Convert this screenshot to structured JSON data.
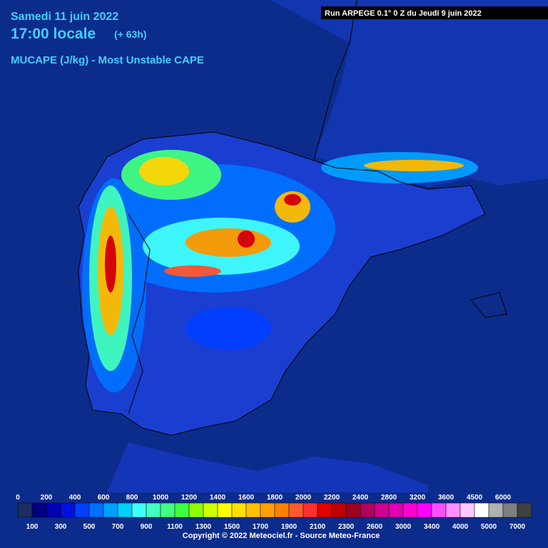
{
  "header": {
    "date": "Samedi 11 juin 2022",
    "time": "17:00 locale",
    "lead": "(+ 63h)",
    "field": "MUCAPE (J/kg) - Most Unstable CAPE",
    "run": "Run ARPEGE 0.1° 0 Z du Jeudi 9 juin 2022"
  },
  "legend": {
    "levels": [
      0,
      100,
      200,
      300,
      400,
      500,
      600,
      700,
      800,
      900,
      1000,
      1100,
      1200,
      1300,
      1400,
      1500,
      1600,
      1700,
      1800,
      1900,
      2000,
      2100,
      2200,
      2300,
      2400,
      2600,
      2800,
      3000,
      3200,
      3400,
      3600,
      4000,
      4500,
      5000,
      6000,
      7000
    ],
    "colors": [
      "#1c2c5c",
      "#000080",
      "#0000b4",
      "#0010e0",
      "#0040ff",
      "#0070ff",
      "#00a0ff",
      "#00d0ff",
      "#40ffff",
      "#40ffc0",
      "#40ff80",
      "#40ff40",
      "#90ff00",
      "#d0ff00",
      "#ffff00",
      "#ffe000",
      "#ffc000",
      "#ffa000",
      "#ff8000",
      "#ff5a30",
      "#ff3030",
      "#e00000",
      "#c00000",
      "#a00020",
      "#b00060",
      "#d00090",
      "#e000b0",
      "#ff00d0",
      "#ff00ff",
      "#ff50ff",
      "#ff90ff",
      "#ffc8ff",
      "#ffffff",
      "#b0b0b0",
      "#808080",
      "#404040"
    ]
  },
  "footer": {
    "copyright": "Copyright © 2022 Meteociel.fr - Source Meteo-France"
  }
}
